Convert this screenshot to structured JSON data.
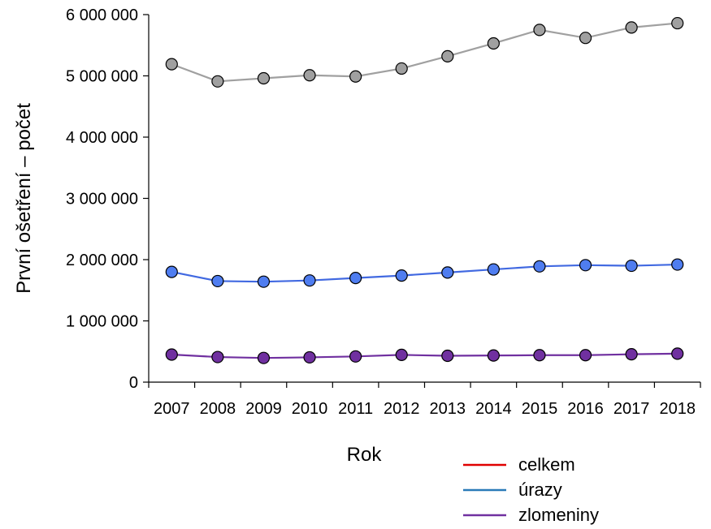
{
  "chart_data": {
    "type": "line",
    "xlabel": "Rok",
    "ylabel": "První ošetření – počet",
    "x": [
      "2007",
      "2008",
      "2009",
      "2010",
      "2011",
      "2012",
      "2013",
      "2014",
      "2015",
      "2016",
      "2017",
      "2018"
    ],
    "ylim": [
      0,
      6000000
    ],
    "yticks": [
      0,
      1000000,
      2000000,
      3000000,
      4000000,
      5000000,
      6000000
    ],
    "ytick_labels": [
      "0",
      "1 000 000",
      "2 000 000",
      "3 000 000",
      "4 000 000",
      "5 000 000",
      "6 000 000"
    ],
    "grid": false,
    "legend_position": "bottom-right",
    "series": [
      {
        "name": "celkem",
        "legend_color": "#e00000",
        "line_color": "#a0a0a0",
        "marker_color": "#a0a0a0",
        "values": [
          5190000,
          4910000,
          4960000,
          5010000,
          4990000,
          5120000,
          5320000,
          5530000,
          5750000,
          5620000,
          5790000,
          5860000
        ]
      },
      {
        "name": "úrazy",
        "legend_color": "#2a7ab8",
        "line_color": "#4169e1",
        "marker_color": "#4f7df0",
        "values": [
          1800000,
          1650000,
          1640000,
          1660000,
          1700000,
          1740000,
          1790000,
          1840000,
          1890000,
          1910000,
          1900000,
          1920000
        ]
      },
      {
        "name": "zlomeniny",
        "legend_color": "#7030a0",
        "line_color": "#7030a0",
        "marker_color": "#7030a0",
        "values": [
          450000,
          410000,
          395000,
          405000,
          420000,
          445000,
          430000,
          435000,
          440000,
          440000,
          455000,
          465000
        ]
      }
    ]
  }
}
